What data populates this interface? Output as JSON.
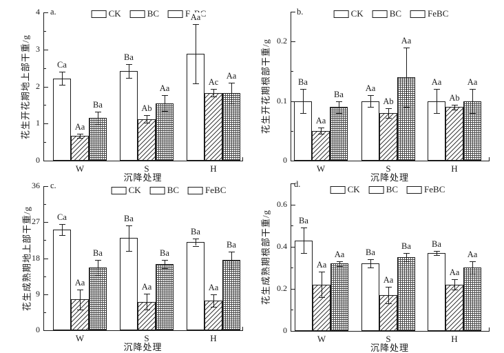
{
  "figure_background": "#ffffff",
  "ink_color": "#1a1a1a",
  "chart_data": [
    {
      "type": "bar",
      "panel_label": "a.",
      "ylabel": "花生开花期地上部干重/g",
      "xlabel": "沉降处理",
      "categories": [
        "W",
        "S",
        "H"
      ],
      "ylim": [
        0,
        4
      ],
      "yticks": [
        0,
        1,
        2,
        3,
        4
      ],
      "ytick_labels": [
        "0",
        "1",
        "2",
        "3",
        "4"
      ],
      "grid": false,
      "legend_position": "top-center",
      "legend": [
        "CK",
        "BC",
        "FeBC"
      ],
      "series": [
        {
          "name": "CK",
          "pattern": "plain",
          "values": [
            2.22,
            2.42,
            2.88
          ],
          "errors": [
            0.18,
            0.18,
            0.8
          ],
          "sig_labels": [
            "Ca",
            "Ba",
            "Aa"
          ]
        },
        {
          "name": "BC",
          "pattern": "diagonal-hatch",
          "values": [
            0.67,
            1.12,
            1.83
          ],
          "errors": [
            0.05,
            0.1,
            0.1
          ],
          "sig_labels": [
            "Aa",
            "Ab",
            "Ac"
          ]
        },
        {
          "name": "FeBC",
          "pattern": "grid-hatch",
          "values": [
            1.16,
            1.55,
            1.82
          ],
          "errors": [
            0.17,
            0.21,
            0.28
          ],
          "sig_labels": [
            "Ba",
            "Aa",
            "Aa"
          ]
        }
      ]
    },
    {
      "type": "bar",
      "panel_label": "b.",
      "ylabel": "花生开花期根部干重/g",
      "xlabel": "沉降处理",
      "categories": [
        "W",
        "S",
        "H"
      ],
      "ylim": [
        0,
        0.25
      ],
      "yticks": [
        0,
        0.1,
        0.2
      ],
      "ytick_labels": [
        "0",
        "0.1",
        "0.2"
      ],
      "grid": false,
      "legend_position": "top-center",
      "legend": [
        "CK",
        "BC",
        "FeBC"
      ],
      "series": [
        {
          "name": "CK",
          "pattern": "plain",
          "values": [
            0.1,
            0.1,
            0.1
          ],
          "errors": [
            0.02,
            0.01,
            0.02
          ],
          "sig_labels": [
            "Ba",
            "Aa",
            "Aa"
          ]
        },
        {
          "name": "BC",
          "pattern": "diagonal-hatch",
          "values": [
            0.05,
            0.08,
            0.09
          ],
          "errors": [
            0.005,
            0.008,
            0.004
          ],
          "sig_labels": [
            "Aa",
            "Ab",
            "Ab"
          ]
        },
        {
          "name": "FeBC",
          "pattern": "grid-hatch",
          "values": [
            0.09,
            0.14,
            0.1
          ],
          "errors": [
            0.01,
            0.05,
            0.02
          ],
          "sig_labels": [
            "Ba",
            "Aa",
            "Aa"
          ]
        }
      ]
    },
    {
      "type": "bar",
      "panel_label": "c.",
      "ylabel": "花生成熟期地上部干重/g",
      "xlabel": "沉降处理",
      "categories": [
        "W",
        "S",
        "H"
      ],
      "ylim": [
        0,
        36
      ],
      "yticks": [
        0,
        9,
        18,
        27,
        36
      ],
      "ytick_labels": [
        "0",
        "9",
        "18",
        "27",
        "36"
      ],
      "grid": false,
      "legend_position": "top-center",
      "legend": [
        "CK",
        "BC",
        "FeBC"
      ],
      "series": [
        {
          "name": "CK",
          "pattern": "plain",
          "values": [
            25.1,
            23.0,
            22.0
          ],
          "errors": [
            1.4,
            3.2,
            0.9
          ],
          "sig_labels": [
            "Ca",
            "Ba",
            "Ba"
          ]
        },
        {
          "name": "BC",
          "pattern": "diagonal-hatch",
          "values": [
            7.7,
            7.1,
            7.4
          ],
          "errors": [
            2.5,
            2.0,
            1.5
          ],
          "sig_labels": [
            "Aa",
            "Aa",
            "Aa"
          ]
        },
        {
          "name": "FeBC",
          "pattern": "grid-hatch",
          "values": [
            15.7,
            16.5,
            17.5
          ],
          "errors": [
            1.9,
            1.0,
            2.2
          ],
          "sig_labels": [
            "Ba",
            "Ba",
            "Ba"
          ]
        }
      ]
    },
    {
      "type": "bar",
      "panel_label": "d.",
      "ylabel": "花生成熟期根部干重/g",
      "xlabel": "沉降处理",
      "categories": [
        "W",
        "S",
        "H"
      ],
      "ylim": [
        0,
        0.7
      ],
      "yticks": [
        0,
        0.2,
        0.4,
        0.6
      ],
      "ytick_labels": [
        "0",
        "0.2",
        "0.4",
        "0.6"
      ],
      "grid": false,
      "legend_position": "top-center",
      "legend": [
        "CK",
        "BC",
        "FeBC"
      ],
      "series": [
        {
          "name": "CK",
          "pattern": "plain",
          "values": [
            0.43,
            0.32,
            0.37
          ],
          "errors": [
            0.06,
            0.02,
            0.01
          ],
          "sig_labels": [
            "Ba",
            "Ba",
            "Ba"
          ]
        },
        {
          "name": "BC",
          "pattern": "diagonal-hatch",
          "values": [
            0.22,
            0.17,
            0.22
          ],
          "errors": [
            0.06,
            0.04,
            0.025
          ],
          "sig_labels": [
            "Aa",
            "Aa",
            "Aa"
          ]
        },
        {
          "name": "FeBC",
          "pattern": "grid-hatch",
          "values": [
            0.32,
            0.35,
            0.3
          ],
          "errors": [
            0.012,
            0.02,
            0.03
          ],
          "sig_labels": [
            "Aa",
            "Ba",
            "Aa"
          ]
        }
      ]
    }
  ]
}
